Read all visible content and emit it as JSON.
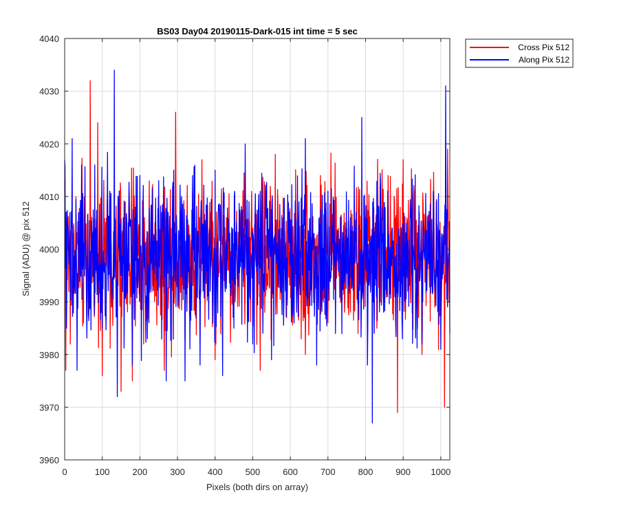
{
  "chart_data": {
    "type": "line",
    "title": "BS03 Day04 20190115-Dark-015 int time = 5 sec",
    "xlabel": "Pixels (both dirs on array)",
    "ylabel": "Signal (ADU) @ pix 512",
    "xlim": [
      0,
      1024
    ],
    "ylim": [
      3960,
      4040
    ],
    "xticks": [
      0,
      100,
      200,
      300,
      400,
      500,
      600,
      700,
      800,
      900,
      1000
    ],
    "yticks": [
      3960,
      3970,
      3980,
      3990,
      4000,
      4010,
      4020,
      4030,
      4040
    ],
    "grid": true,
    "legend_position": "outside-top-right",
    "colors": {
      "cross": "#ff0000",
      "along": "#0000ff"
    },
    "series": [
      {
        "name": "Cross Pix 512",
        "color": "#ff0000",
        "x": [
          0,
          3,
          8,
          15,
          30,
          50,
          68,
          80,
          88,
          100,
          120,
          140,
          150,
          160,
          180,
          210,
          240,
          265,
          295,
          320,
          340,
          365,
          400,
          450,
          500,
          520,
          560,
          590,
          620,
          640,
          680,
          700,
          750,
          780,
          800,
          830,
          860,
          885,
          900,
          950,
          980,
          1010,
          1018,
          1024
        ],
        "values": [
          4013,
          3977,
          4005,
          3982,
          4010,
          3986,
          4032,
          3990,
          4024,
          3976,
          4011,
          3992,
          3973,
          4002,
          3975,
          3982,
          4005,
          3977,
          4026,
          3983,
          4011,
          4017,
          3979,
          3994,
          4004,
          3977,
          4018,
          3987,
          4006,
          3980,
          4014,
          3986,
          4004,
          3984,
          4006,
          3985,
          4014,
          3969,
          4017,
          3980,
          4005,
          3970,
          4019,
          3992
        ]
      },
      {
        "name": "Along Pix 512",
        "color": "#0000ff",
        "x": [
          0,
          5,
          20,
          33,
          45,
          60,
          80,
          100,
          120,
          132,
          140,
          160,
          180,
          200,
          220,
          250,
          270,
          290,
          320,
          340,
          360,
          400,
          420,
          450,
          480,
          500,
          520,
          550,
          580,
          610,
          640,
          670,
          700,
          720,
          760,
          790,
          805,
          818,
          840,
          880,
          920,
          950,
          980,
          1000,
          1013,
          1024
        ],
        "values": [
          4017,
          3985,
          4021,
          3977,
          4016,
          3992,
          4016,
          3985,
          4011,
          4034,
          3972,
          4009,
          3978,
          4014,
          3983,
          4013,
          3975,
          4015,
          3975,
          4014,
          3978,
          4015,
          3976,
          3985,
          4020,
          3982,
          4011,
          3979,
          4006,
          3986,
          4021,
          3978,
          4011,
          3984,
          4006,
          4025,
          3978,
          3967,
          4012,
          3986,
          4006,
          3982,
          4011,
          3981,
          4031,
          3984
        ]
      }
    ]
  }
}
